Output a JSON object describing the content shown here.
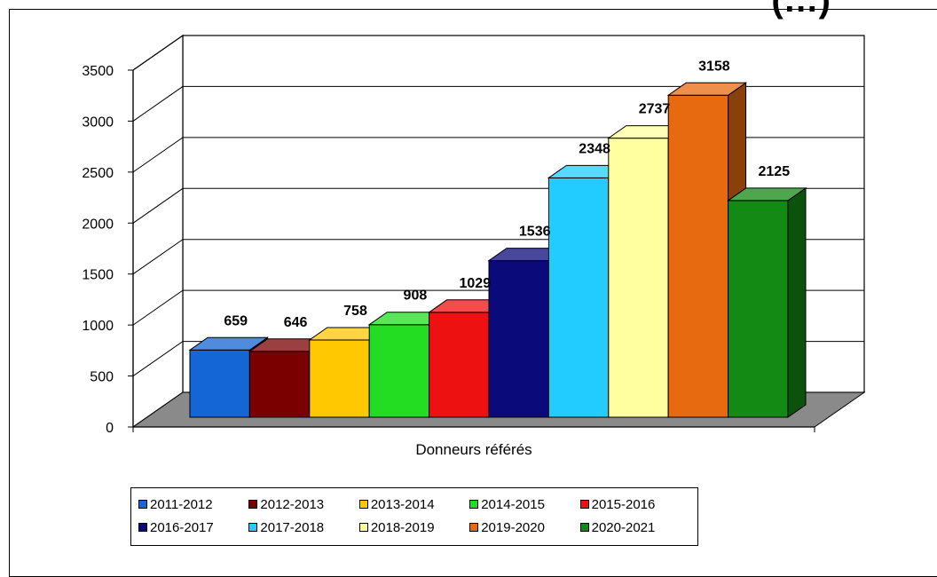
{
  "chart_data": {
    "type": "bar",
    "title": "",
    "xlabel": "Donneurs référés",
    "ylabel": "",
    "ylim": [
      0,
      3500
    ],
    "yticks": [
      "0",
      "500",
      "1000",
      "1500",
      "2000",
      "2500",
      "3000",
      "3500"
    ],
    "grid": true,
    "legend_position": "bottom",
    "categories": [
      "Donneurs référés"
    ],
    "series": [
      {
        "name": "2011-2012",
        "values": [
          659
        ],
        "color": "#1466d6"
      },
      {
        "name": "2012-2013",
        "values": [
          646
        ],
        "color": "#7a0000"
      },
      {
        "name": "2013-2014",
        "values": [
          758
        ],
        "color": "#ffc800"
      },
      {
        "name": "2014-2015",
        "values": [
          908
        ],
        "color": "#22dd22"
      },
      {
        "name": "2015-2016",
        "values": [
          1029
        ],
        "color": "#ee1111"
      },
      {
        "name": "2016-2017",
        "values": [
          1536
        ],
        "color": "#0a0a7a"
      },
      {
        "name": "2017-2018",
        "values": [
          2348
        ],
        "color": "#22ccff"
      },
      {
        "name": "2018-2019",
        "values": [
          2737
        ],
        "color": "#ffffa0"
      },
      {
        "name": "2019-2020",
        "values": [
          3158
        ],
        "color": "#e86a10"
      },
      {
        "name": "2020-2021",
        "values": [
          2125
        ],
        "color": "#138a13"
      }
    ],
    "data_labels": [
      "659",
      "646",
      "758",
      "908",
      "1029",
      "1536",
      "2348",
      "2737",
      "3158",
      "2125"
    ]
  },
  "header_fragment": "(…)"
}
